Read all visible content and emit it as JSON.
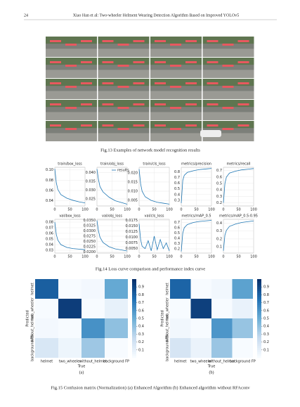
{
  "header": {
    "page": "24",
    "running_title": "Xiao Han et al: Two-wheeler Helment Wearing Detection Algorithm Based on Improved YOLOv5"
  },
  "fig13": {
    "caption": "Fig.13 Examples of network model recognition results"
  },
  "fig14": {
    "caption": "Fig.14 Loss curve comparison and performance index curve"
  },
  "fig15": {
    "caption": "Fig.15 Confusion matrix (Normalization) (a) Enhanced Algorithm (b) Enhanced algorithm without RFAconv"
  },
  "chart_data": [
    {
      "type": "line",
      "title": "train/box_loss",
      "x": [
        0,
        5,
        10,
        20,
        40,
        60,
        80,
        100
      ],
      "values": [
        0.102,
        0.075,
        0.062,
        0.052,
        0.045,
        0.041,
        0.038,
        0.036
      ],
      "xlim": [
        0,
        100
      ],
      "xticks": [
        0,
        50,
        100
      ],
      "ylim": [
        0.03,
        0.105
      ],
      "yticks": [
        0.04,
        0.06,
        0.08,
        {
          "value": 0.1,
          "label": "0.10"
        }
      ],
      "grid": true,
      "color": "#1f77b4"
    },
    {
      "type": "line",
      "title": "train/obj_loss",
      "legend": "results",
      "x": [
        0,
        5,
        10,
        20,
        40,
        60,
        80,
        100
      ],
      "values": [
        0.042,
        0.036,
        0.032,
        0.029,
        0.026,
        0.024,
        0.023,
        0.022
      ],
      "xlim": [
        0,
        100
      ],
      "xticks": [
        0,
        50,
        100
      ],
      "ylim": [
        0.021,
        0.043
      ],
      "yticks": [
        0.025,
        {
          "value": 0.03,
          "label": "0.030"
        },
        0.035,
        {
          "value": 0.04,
          "label": "0.040"
        }
      ],
      "grid": true,
      "color": "#1f77b4"
    },
    {
      "type": "line",
      "title": "train/cls_loss",
      "x": [
        0,
        5,
        10,
        20,
        40,
        60,
        80,
        100
      ],
      "values": [
        0.022,
        0.014,
        0.01,
        0.007,
        0.005,
        0.004,
        0.0035,
        0.003
      ],
      "xlim": [
        0,
        100
      ],
      "xticks": [
        0,
        50,
        100
      ],
      "ylim": [
        0.002,
        0.023
      ],
      "yticks": [
        0.005,
        {
          "value": 0.01,
          "label": "0.010"
        },
        0.015,
        {
          "value": 0.02,
          "label": "0.020"
        }
      ],
      "grid": true,
      "color": "#1f77b4"
    },
    {
      "type": "line",
      "title": "metrics/precision",
      "x": [
        0,
        5,
        10,
        20,
        40,
        60,
        80,
        100
      ],
      "values": [
        0.25,
        0.65,
        0.74,
        0.79,
        0.82,
        0.84,
        0.85,
        0.86
      ],
      "xlim": [
        0,
        100
      ],
      "xticks": [
        0,
        50,
        100
      ],
      "ylim": [
        0.2,
        0.88
      ],
      "yticks": [
        0.3,
        0.4,
        0.5,
        0.6,
        0.7,
        0.8
      ],
      "grid": true,
      "color": "#1f77b4"
    },
    {
      "type": "line",
      "title": "metrics/recall",
      "x": [
        0,
        5,
        10,
        20,
        40,
        60,
        80,
        100
      ],
      "values": [
        0.2,
        0.5,
        0.6,
        0.66,
        0.69,
        0.71,
        0.72,
        0.73
      ],
      "xlim": [
        0,
        100
      ],
      "xticks": [
        0,
        50,
        100
      ],
      "ylim": [
        0.15,
        0.75
      ],
      "yticks": [
        0.2,
        0.3,
        0.4,
        0.5,
        0.6,
        0.7
      ],
      "grid": true,
      "color": "#1f77b4"
    },
    {
      "type": "line",
      "title": "val/box_loss",
      "x": [
        0,
        5,
        10,
        20,
        40,
        60,
        80,
        100
      ],
      "values": [
        0.08,
        0.058,
        0.048,
        0.04,
        0.035,
        0.033,
        0.032,
        0.031
      ],
      "xlim": [
        0,
        100
      ],
      "xticks": [
        0,
        50,
        100
      ],
      "ylim": [
        0.025,
        0.085
      ],
      "yticks": [
        0.03,
        0.04,
        0.05,
        0.06,
        0.07,
        0.08
      ],
      "grid": true,
      "color": "#1f77b4"
    },
    {
      "type": "line",
      "title": "val/obj_loss",
      "x": [
        0,
        5,
        10,
        20,
        40,
        60,
        80,
        100
      ],
      "values": [
        0.035,
        0.03,
        0.027,
        0.0245,
        0.0225,
        0.0215,
        0.021,
        0.0205
      ],
      "xlim": [
        0,
        100
      ],
      "xticks": [
        0,
        50,
        100
      ],
      "ylim": [
        0.0195,
        0.0355
      ],
      "yticks": [
        {
          "value": 0.02,
          "label": "0.0200"
        },
        0.0225,
        {
          "value": 0.025,
          "label": "0.0250"
        },
        0.0275,
        {
          "value": 0.03,
          "label": "0.0300"
        },
        0.0325,
        {
          "value": 0.035,
          "label": "0.0350"
        }
      ],
      "grid": true,
      "color": "#1f77b4"
    },
    {
      "type": "line",
      "title": "val/cls_loss",
      "x": [
        0,
        5,
        10,
        20,
        30,
        40,
        50,
        60,
        70,
        80,
        90,
        100
      ],
      "values": [
        0.016,
        0.009,
        0.006,
        0.005,
        0.0085,
        0.004,
        0.0105,
        0.0045,
        0.009,
        0.005,
        0.0075,
        0.004
      ],
      "xlim": [
        0,
        100
      ],
      "xticks": [
        0,
        50,
        100
      ],
      "ylim": [
        0.003,
        0.018
      ],
      "yticks": [
        {
          "value": 0.005,
          "label": "0.0050"
        },
        0.0075,
        {
          "value": 0.01,
          "label": "0.0100"
        },
        0.0125,
        {
          "value": 0.015,
          "label": "0.0150"
        },
        0.0175
      ],
      "grid": true,
      "color": "#1f77b4"
    },
    {
      "type": "line",
      "title": "metrics/mAP_0.5",
      "x": [
        0,
        5,
        10,
        20,
        40,
        60,
        80,
        100
      ],
      "values": [
        0.15,
        0.5,
        0.6,
        0.66,
        0.7,
        0.72,
        0.73,
        0.74
      ],
      "xlim": [
        0,
        100
      ],
      "xticks": [
        0,
        50,
        100
      ],
      "ylim": [
        0.12,
        0.76
      ],
      "yticks": [
        0.2,
        0.3,
        0.4,
        0.5,
        0.6,
        0.7
      ],
      "grid": true,
      "color": "#1f77b4"
    },
    {
      "type": "line",
      "title": "metrics/mAP_0.5:0.95",
      "x": [
        0,
        5,
        10,
        20,
        40,
        60,
        80,
        100
      ],
      "values": [
        0.05,
        0.25,
        0.31,
        0.36,
        0.39,
        0.41,
        0.42,
        0.43
      ],
      "xlim": [
        0,
        100
      ],
      "xticks": [
        0,
        50,
        100
      ],
      "ylim": [
        0.02,
        0.45
      ],
      "yticks": [
        0.1,
        0.2,
        0.3,
        0.4
      ],
      "grid": true,
      "color": "#1f77b4"
    },
    {
      "type": "heatmap",
      "subtitle": "(a)",
      "xlabel": "True",
      "ylabel": "Predicted",
      "x_categories": [
        "helmet",
        "two_wheeler",
        "without_helmet",
        "background FP"
      ],
      "y_categories": [
        "helmet",
        "two_wheeler",
        "without_helmet",
        "background FN"
      ],
      "values": [
        [
          0.82,
          0.0,
          0.02,
          0.52
        ],
        [
          0.0,
          0.95,
          0.0,
          0.08
        ],
        [
          0.02,
          0.0,
          0.62,
          0.4
        ],
        [
          0.16,
          0.05,
          0.36,
          0.0
        ]
      ],
      "clim": [
        0,
        1
      ],
      "colorbar_ticks": [
        0.1,
        0.2,
        0.3,
        0.4,
        0.5,
        0.6,
        0.7,
        0.8,
        0.9
      ]
    },
    {
      "type": "heatmap",
      "subtitle": "(b)",
      "xlabel": "True",
      "ylabel": "Predicted",
      "x_categories": [
        "helmet",
        "two_wheeler",
        "without_helmet",
        "background FP"
      ],
      "y_categories": [
        "helmet",
        "two_wheeler",
        "without_helmet",
        "background FN"
      ],
      "values": [
        [
          0.8,
          0.0,
          0.03,
          0.55
        ],
        [
          0.0,
          0.94,
          0.0,
          0.07
        ],
        [
          0.03,
          0.0,
          0.6,
          0.38
        ],
        [
          0.17,
          0.06,
          0.37,
          0.0
        ]
      ],
      "clim": [
        0,
        1
      ],
      "colorbar_ticks": [
        0.1,
        0.2,
        0.3,
        0.4,
        0.5,
        0.6,
        0.7,
        0.8,
        0.9
      ]
    }
  ]
}
